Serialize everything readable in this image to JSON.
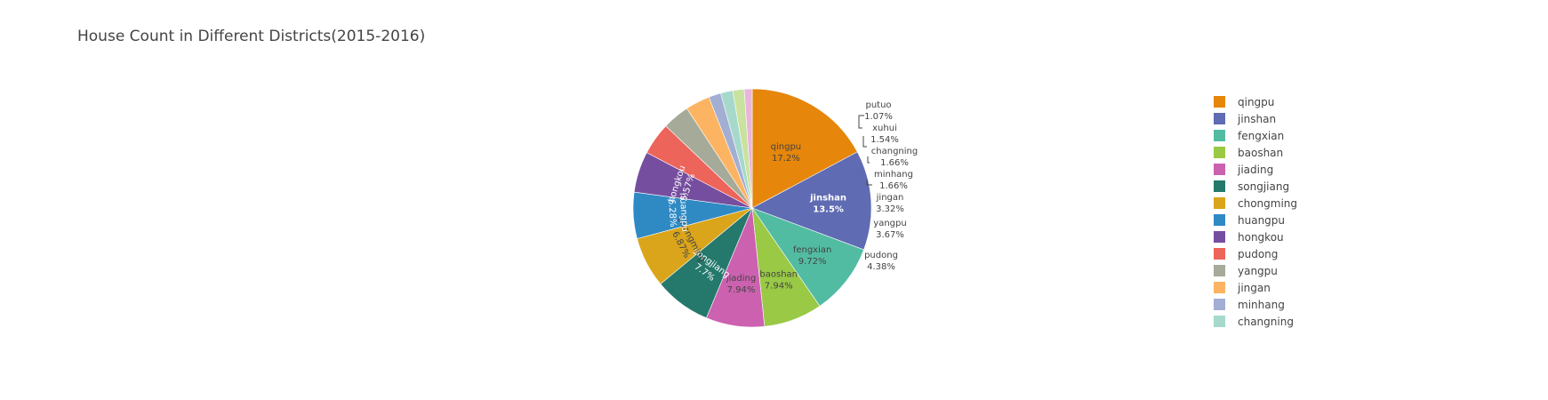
{
  "chart_data": {
    "type": "pie",
    "title": "House Count in Different Districts(2015-2016)",
    "slices": [
      {
        "label": "qingpu",
        "percent": "17.2%",
        "value": 17.2,
        "color": "#E6860A"
      },
      {
        "label": "jinshan",
        "percent": "13.5%",
        "value": 13.5,
        "color": "#5F6BB2"
      },
      {
        "label": "fengxian",
        "percent": "9.72%",
        "value": 9.72,
        "color": "#52BCA3"
      },
      {
        "label": "baoshan",
        "percent": "7.94%",
        "value": 7.94,
        "color": "#99C945"
      },
      {
        "label": "jiading",
        "percent": "7.94%",
        "value": 7.94,
        "color": "#CC61B0"
      },
      {
        "label": "songjiang",
        "percent": "7.7%",
        "value": 7.7,
        "color": "#24796C"
      },
      {
        "label": "chongming",
        "percent": "6.87%",
        "value": 6.87,
        "color": "#DAA51B"
      },
      {
        "label": "huangpu",
        "percent": "6.28%",
        "value": 6.28,
        "color": "#2F8AC4"
      },
      {
        "label": "hongkou",
        "percent": "5.57%",
        "value": 5.57,
        "color": "#764E9F"
      },
      {
        "label": "pudong",
        "percent": "4.38%",
        "value": 4.38,
        "color": "#ED645A"
      },
      {
        "label": "yangpu",
        "percent": "3.67%",
        "value": 3.67,
        "color": "#A5AA99"
      },
      {
        "label": "jingan",
        "percent": "3.32%",
        "value": 3.32,
        "color": "#FDB462"
      },
      {
        "label": "minhang",
        "percent": "1.66%",
        "value": 1.66,
        "color": "#A3AED3"
      },
      {
        "label": "changning",
        "percent": "1.66%",
        "value": 1.66,
        "color": "#A6D9CB"
      },
      {
        "label": "xuhui",
        "percent": "1.54%",
        "value": 1.54,
        "color": "#C9E29E"
      },
      {
        "label": "putuo",
        "percent": "1.07%",
        "value": 1.07,
        "color": "#E8B5DB"
      }
    ],
    "legend_items": [
      "qingpu",
      "jinshan",
      "fengxian",
      "baoshan",
      "jiading",
      "songjiang",
      "chongming",
      "huangpu",
      "hongkou",
      "pudong",
      "yangpu",
      "jingan",
      "minhang",
      "changning"
    ],
    "legend_position": "right",
    "direction": "clockwise",
    "start_angle": "12 o'clock"
  }
}
